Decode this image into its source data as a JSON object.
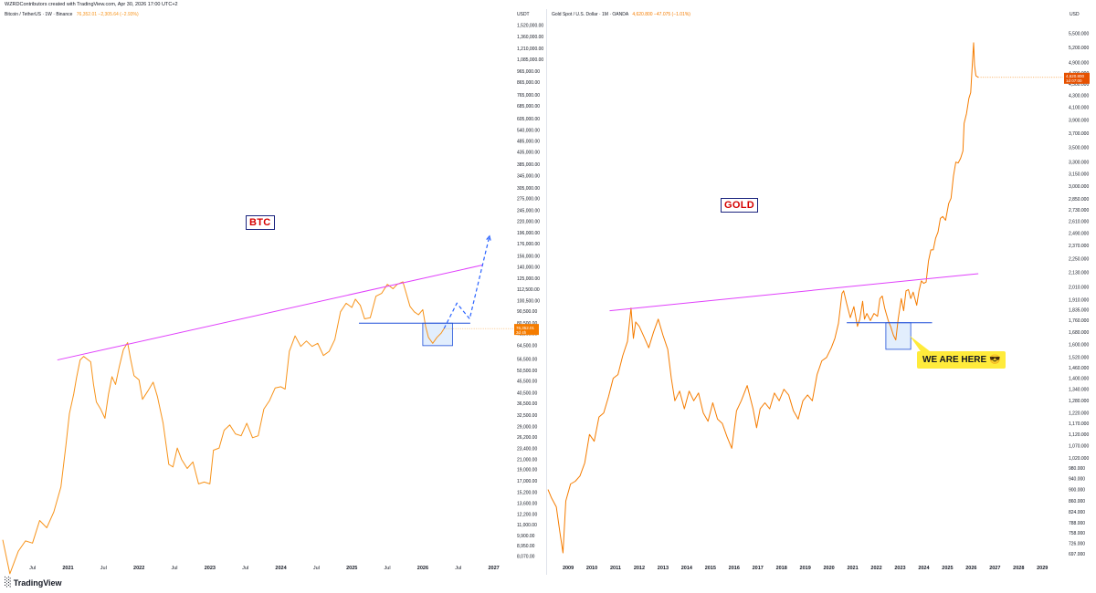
{
  "header": {
    "text": "WZRDContributors created with TradingView.com, Apr 30, 2026 17:00 UTC+2"
  },
  "left_panel": {
    "symbol": "Bitcoin / TetherUS · 1W · Binance",
    "value_text": "76,352.01 −2,305.64 (−2.93%)",
    "currency": "USDT",
    "label": "BTC",
    "price_tag_line1": "76,352.01",
    "price_tag_line2": "3d 4h",
    "line_color": "#f7931a"
  },
  "right_panel": {
    "symbol": "Gold Spot / U.S. Dollar · 1M · OANDA",
    "value_text": "4,620.800 −47.075 (−1.01%)",
    "currency": "USD",
    "label": "GOLD",
    "callout": "WE ARE HERE 😎",
    "price_tag_line1": "4,620.800",
    "price_tag_line2": "1d 07:00",
    "line_color": "#f57c00"
  },
  "logo": {
    "text": "TradingView",
    "mark_icon": "tradingview-logo-icon"
  },
  "colors": {
    "resistance": "#e040fb",
    "support": "#1e4fd8",
    "box_fill": "#cfe3fb",
    "projection": "#2962ff",
    "tag_btc": "#f57c00",
    "tag_gold": "#e65100"
  },
  "chart_data": [
    {
      "type": "line",
      "name": "Bitcoin / TetherUS",
      "scale": "log",
      "y_ticks": [
        1520000,
        1360000,
        1210000,
        1085000,
        965000,
        865000,
        765000,
        685000,
        605000,
        540000,
        485000,
        435000,
        385000,
        345000,
        305000,
        275000,
        245000,
        220000,
        196000,
        176000,
        156000,
        140000,
        125000,
        112500,
        100500,
        90500,
        80500,
        72500,
        64500,
        56500,
        50500,
        45500,
        40500,
        36500,
        32500,
        29000,
        26200,
        23400,
        21000,
        19000,
        17000,
        15200,
        13600,
        12200,
        11000,
        9900,
        8950,
        8070
      ],
      "y_tick_labels": [
        "1,520,000.00",
        "1,360,000.00",
        "1,210,000.00",
        "1,085,000.00",
        "965,000.00",
        "865,000.00",
        "765,000.00",
        "685,000.00",
        "605,000.00",
        "540,000.00",
        "485,000.00",
        "435,000.00",
        "385,000.00",
        "345,000.00",
        "305,000.00",
        "275,000.00",
        "245,000.00",
        "220,000.00",
        "196,000.00",
        "176,000.00",
        "156,000.00",
        "140,000.00",
        "125,000.00",
        "112,500.00",
        "100,500.00",
        "90,500.00",
        "80,500.00",
        "72,500.00",
        "64,500.00",
        "56,500.00",
        "50,500.00",
        "45,500.00",
        "40,500.00",
        "36,500.00",
        "32,500.00",
        "29,000.00",
        "26,200.00",
        "23,400.00",
        "21,000.00",
        "19,000.00",
        "17,000.00",
        "15,200.00",
        "13,600.00",
        "12,200.00",
        "11,000.00",
        "9,900.00",
        "8,950.00",
        "8,070.00"
      ],
      "x_ticks": [
        2020.5,
        2021,
        2021.5,
        2022,
        2022.5,
        2023,
        2023.5,
        2024,
        2024.5,
        2025,
        2025.5,
        2026,
        2026.5,
        2027
      ],
      "x_tick_labels": [
        "Jul",
        "2021",
        "Jul",
        "2022",
        "Jul",
        "2023",
        "Jul",
        "2024",
        "Jul",
        "2025",
        "Jul",
        "2026",
        "Jul",
        "2027"
      ],
      "x_range": [
        2020.08,
        2027.25
      ],
      "y_range": [
        7500,
        1600000
      ],
      "points": [
        [
          2020.08,
          9500
        ],
        [
          2020.18,
          6800
        ],
        [
          2020.3,
          8500
        ],
        [
          2020.4,
          9400
        ],
        [
          2020.5,
          9200
        ],
        [
          2020.6,
          11500
        ],
        [
          2020.7,
          10700
        ],
        [
          2020.8,
          12500
        ],
        [
          2020.9,
          16000
        ],
        [
          2020.97,
          24000
        ],
        [
          2021.02,
          33000
        ],
        [
          2021.08,
          40000
        ],
        [
          2021.12,
          47000
        ],
        [
          2021.17,
          56000
        ],
        [
          2021.22,
          58000
        ],
        [
          2021.27,
          56500
        ],
        [
          2021.32,
          55000
        ],
        [
          2021.36,
          44000
        ],
        [
          2021.4,
          37000
        ],
        [
          2021.46,
          34500
        ],
        [
          2021.52,
          31500
        ],
        [
          2021.57,
          40000
        ],
        [
          2021.62,
          47500
        ],
        [
          2021.67,
          44000
        ],
        [
          2021.72,
          52000
        ],
        [
          2021.78,
          62000
        ],
        [
          2021.84,
          66500
        ],
        [
          2021.88,
          57000
        ],
        [
          2021.93,
          48000
        ],
        [
          2022.0,
          46000
        ],
        [
          2022.05,
          38000
        ],
        [
          2022.12,
          41000
        ],
        [
          2022.2,
          45000
        ],
        [
          2022.26,
          39000
        ],
        [
          2022.34,
          30000
        ],
        [
          2022.42,
          20000
        ],
        [
          2022.48,
          19500
        ],
        [
          2022.54,
          23500
        ],
        [
          2022.6,
          21000
        ],
        [
          2022.68,
          19200
        ],
        [
          2022.76,
          20500
        ],
        [
          2022.84,
          16500
        ],
        [
          2022.92,
          16800
        ],
        [
          2023.0,
          16500
        ],
        [
          2023.05,
          23000
        ],
        [
          2023.13,
          23500
        ],
        [
          2023.2,
          28000
        ],
        [
          2023.28,
          29500
        ],
        [
          2023.36,
          27000
        ],
        [
          2023.44,
          26500
        ],
        [
          2023.52,
          30000
        ],
        [
          2023.6,
          26000
        ],
        [
          2023.68,
          26500
        ],
        [
          2023.76,
          34500
        ],
        [
          2023.84,
          37500
        ],
        [
          2023.92,
          42500
        ],
        [
          2024.0,
          43000
        ],
        [
          2024.06,
          42000
        ],
        [
          2024.12,
          61000
        ],
        [
          2024.2,
          71000
        ],
        [
          2024.28,
          64000
        ],
        [
          2024.36,
          67500
        ],
        [
          2024.44,
          64000
        ],
        [
          2024.52,
          66000
        ],
        [
          2024.6,
          58500
        ],
        [
          2024.68,
          61000
        ],
        [
          2024.76,
          68500
        ],
        [
          2024.84,
          90000
        ],
        [
          2024.92,
          98000
        ],
        [
          2025.0,
          94000
        ],
        [
          2025.05,
          102000
        ],
        [
          2025.12,
          96000
        ],
        [
          2025.18,
          84000
        ],
        [
          2025.26,
          85000
        ],
        [
          2025.34,
          105000
        ],
        [
          2025.42,
          108000
        ],
        [
          2025.5,
          118000
        ],
        [
          2025.58,
          113000
        ],
        [
          2025.64,
          118000
        ],
        [
          2025.72,
          121000
        ],
        [
          2025.76,
          110000
        ],
        [
          2025.82,
          95000
        ],
        [
          2025.88,
          90000
        ],
        [
          2025.94,
          87500
        ],
        [
          2026.0,
          92000
        ],
        [
          2026.04,
          78000
        ],
        [
          2026.08,
          70000
        ],
        [
          2026.14,
          66000
        ],
        [
          2026.2,
          70000
        ],
        [
          2026.26,
          73000
        ],
        [
          2026.3,
          76352
        ]
      ],
      "projection": [
        [
          2026.3,
          76352
        ],
        [
          2026.48,
          98000
        ],
        [
          2026.66,
          84000
        ],
        [
          2026.94,
          190000
        ]
      ],
      "resistance_line": [
        [
          2020.85,
          56000
        ],
        [
          2026.85,
          143000
        ]
      ],
      "support_line": [
        [
          2025.1,
          80500
        ],
        [
          2026.67,
          80500
        ]
      ],
      "highlight_box": {
        "x": [
          2026.0,
          2026.42
        ],
        "y": [
          64500,
          80500
        ]
      }
    },
    {
      "type": "line",
      "name": "Gold Spot / U.S. Dollar",
      "scale": "log",
      "y_ticks": [
        5500,
        5200,
        4900,
        4700,
        4500,
        4300,
        4100,
        3900,
        3700,
        3500,
        3300,
        3150,
        3000,
        2850,
        2730,
        2610,
        2490,
        2370,
        2250,
        2130,
        2010,
        1910,
        1835,
        1760,
        1680,
        1600,
        1520,
        1460,
        1400,
        1340,
        1280,
        1220,
        1170,
        1120,
        1070,
        1020,
        980,
        940,
        900,
        860,
        824,
        788,
        758,
        726,
        697
      ],
      "y_tick_labels": [
        "5,500.000",
        "5,200.000",
        "4,900.000",
        "4,700.000",
        "4,500.000",
        "4,300.000",
        "4,100.000",
        "3,900.000",
        "3,700.000",
        "3,500.000",
        "3,300.000",
        "3,150.000",
        "3,000.000",
        "2,850.000",
        "2,730.000",
        "2,610.000",
        "2,490.000",
        "2,370.000",
        "2,250.000",
        "2,130.000",
        "2,010.000",
        "1,910.000",
        "1,835.000",
        "1,760.000",
        "1,680.000",
        "1,600.000",
        "1,520.000",
        "1,460.000",
        "1,400.000",
        "1,340.000",
        "1,280.000",
        "1,220.000",
        "1,170.000",
        "1,120.000",
        "1,070.000",
        "1,020.000",
        "980.000",
        "940.000",
        "900.000",
        "860.000",
        "824.000",
        "788.000",
        "758.000",
        "726.000",
        "697.000"
      ],
      "x_ticks": [
        2009,
        2010,
        2011,
        2012,
        2013,
        2014,
        2015,
        2016,
        2017,
        2018,
        2019,
        2020,
        2021,
        2022,
        2023,
        2024,
        2025,
        2026,
        2027,
        2028,
        2029
      ],
      "x_tick_labels": [
        "2009",
        "2010",
        "2011",
        "2012",
        "2013",
        "2014",
        "2015",
        "2016",
        "2017",
        "2018",
        "2019",
        "2020",
        "2021",
        "2022",
        "2023",
        "2024",
        "2025",
        "2026",
        "2027",
        "2028",
        "2029"
      ],
      "x_range": [
        2008.15,
        2029.8
      ],
      "y_range": [
        680,
        5800
      ],
      "points": [
        [
          2008.1,
          900
        ],
        [
          2008.3,
          870
        ],
        [
          2008.5,
          840
        ],
        [
          2008.65,
          760
        ],
        [
          2008.78,
          700
        ],
        [
          2008.9,
          860
        ],
        [
          2009.1,
          920
        ],
        [
          2009.3,
          930
        ],
        [
          2009.5,
          950
        ],
        [
          2009.7,
          1000
        ],
        [
          2009.9,
          1120
        ],
        [
          2010.1,
          1090
        ],
        [
          2010.3,
          1200
        ],
        [
          2010.5,
          1220
        ],
        [
          2010.7,
          1300
        ],
        [
          2010.9,
          1400
        ],
        [
          2011.1,
          1420
        ],
        [
          2011.3,
          1530
        ],
        [
          2011.5,
          1620
        ],
        [
          2011.65,
          1850
        ],
        [
          2011.75,
          1640
        ],
        [
          2011.85,
          1750
        ],
        [
          2012.0,
          1720
        ],
        [
          2012.2,
          1650
        ],
        [
          2012.4,
          1580
        ],
        [
          2012.6,
          1680
        ],
        [
          2012.8,
          1770
        ],
        [
          2013.0,
          1660
        ],
        [
          2013.2,
          1570
        ],
        [
          2013.35,
          1400
        ],
        [
          2013.5,
          1280
        ],
        [
          2013.7,
          1330
        ],
        [
          2013.9,
          1240
        ],
        [
          2014.1,
          1330
        ],
        [
          2014.3,
          1280
        ],
        [
          2014.5,
          1320
        ],
        [
          2014.7,
          1220
        ],
        [
          2014.9,
          1180
        ],
        [
          2015.1,
          1270
        ],
        [
          2015.3,
          1190
        ],
        [
          2015.5,
          1170
        ],
        [
          2015.7,
          1110
        ],
        [
          2015.9,
          1060
        ],
        [
          2016.1,
          1230
        ],
        [
          2016.3,
          1280
        ],
        [
          2016.55,
          1360
        ],
        [
          2016.8,
          1240
        ],
        [
          2016.95,
          1150
        ],
        [
          2017.1,
          1240
        ],
        [
          2017.3,
          1270
        ],
        [
          2017.5,
          1240
        ],
        [
          2017.7,
          1320
        ],
        [
          2017.9,
          1280
        ],
        [
          2018.1,
          1340
        ],
        [
          2018.3,
          1310
        ],
        [
          2018.5,
          1230
        ],
        [
          2018.7,
          1190
        ],
        [
          2018.9,
          1280
        ],
        [
          2019.1,
          1310
        ],
        [
          2019.3,
          1280
        ],
        [
          2019.5,
          1420
        ],
        [
          2019.7,
          1500
        ],
        [
          2019.9,
          1520
        ],
        [
          2020.1,
          1580
        ],
        [
          2020.25,
          1640
        ],
        [
          2020.4,
          1740
        ],
        [
          2020.55,
          1960
        ],
        [
          2020.62,
          1980
        ],
        [
          2020.75,
          1880
        ],
        [
          2020.9,
          1780
        ],
        [
          2021.05,
          1860
        ],
        [
          2021.2,
          1720
        ],
        [
          2021.3,
          1770
        ],
        [
          2021.42,
          1900
        ],
        [
          2021.5,
          1770
        ],
        [
          2021.6,
          1810
        ],
        [
          2021.75,
          1760
        ],
        [
          2021.9,
          1810
        ],
        [
          2022.05,
          1790
        ],
        [
          2022.15,
          1920
        ],
        [
          2022.25,
          1940
        ],
        [
          2022.35,
          1850
        ],
        [
          2022.5,
          1760
        ],
        [
          2022.6,
          1720
        ],
        [
          2022.72,
          1660
        ],
        [
          2022.82,
          1630
        ],
        [
          2022.92,
          1770
        ],
        [
          2023.05,
          1920
        ],
        [
          2023.15,
          1830
        ],
        [
          2023.25,
          1980
        ],
        [
          2023.35,
          1990
        ],
        [
          2023.45,
          1920
        ],
        [
          2023.55,
          1970
        ],
        [
          2023.7,
          1870
        ],
        [
          2023.8,
          1980
        ],
        [
          2023.9,
          2060
        ],
        [
          2024.0,
          2040
        ],
        [
          2024.1,
          2050
        ],
        [
          2024.2,
          2230
        ],
        [
          2024.3,
          2330
        ],
        [
          2024.4,
          2330
        ],
        [
          2024.5,
          2440
        ],
        [
          2024.6,
          2500
        ],
        [
          2024.7,
          2640
        ],
        [
          2024.8,
          2660
        ],
        [
          2024.92,
          2620
        ],
        [
          2025.05,
          2800
        ],
        [
          2025.15,
          2860
        ],
        [
          2025.25,
          3120
        ],
        [
          2025.35,
          3300
        ],
        [
          2025.45,
          3290
        ],
        [
          2025.55,
          3350
        ],
        [
          2025.65,
          3450
        ],
        [
          2025.7,
          3850
        ],
        [
          2025.8,
          4000
        ],
        [
          2025.9,
          4250
        ],
        [
          2025.98,
          4350
        ],
        [
          2026.05,
          4900
        ],
        [
          2026.1,
          5300
        ],
        [
          2026.14,
          4850
        ],
        [
          2026.2,
          4650
        ],
        [
          2026.3,
          4620
        ]
      ],
      "resistance_line": [
        [
          2010.75,
          1830
        ],
        [
          2026.3,
          2120
        ]
      ],
      "support_line": [
        [
          2020.75,
          1745
        ],
        [
          2024.35,
          1745
        ]
      ],
      "highlight_box": {
        "x": [
          2022.4,
          2023.45
        ],
        "y": [
          1570,
          1745
        ]
      }
    }
  ]
}
